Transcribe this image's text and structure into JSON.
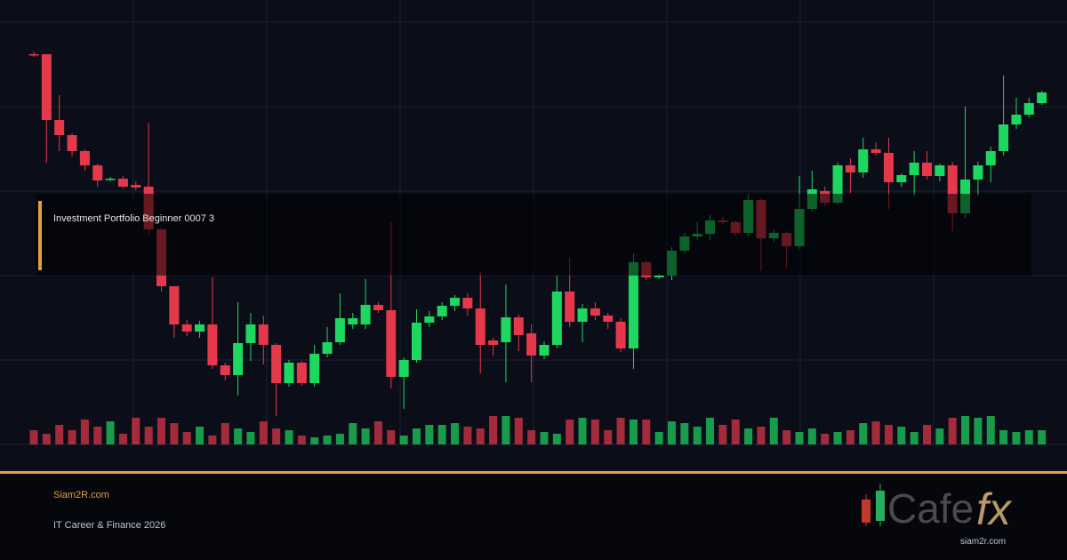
{
  "chart_data": {
    "type": "candlestick",
    "up_color": "#1ed760",
    "down_color": "#e5384a",
    "ylim": [
      0,
      475
    ],
    "open": [
      439,
      439,
      365,
      348,
      330,
      314,
      298,
      299,
      292,
      290,
      242,
      178,
      135,
      127,
      135,
      89,
      78,
      114,
      135,
      112,
      69,
      92,
      69,
      102,
      115,
      135,
      135,
      157,
      151,
      76,
      95,
      137,
      144,
      156,
      165,
      153,
      117,
      115,
      143,
      125,
      100,
      112,
      172,
      138,
      153,
      145,
      138,
      108,
      205,
      188,
      190,
      218,
      234,
      237,
      252,
      250,
      238,
      275,
      232,
      238,
      223,
      265,
      285,
      272,
      314,
      306,
      332,
      328,
      295,
      303,
      317,
      302,
      314,
      260,
      298,
      314,
      330,
      360,
      371,
      384
    ],
    "high": [
      442,
      439,
      393,
      350,
      332,
      316,
      301,
      302,
      296,
      362,
      244,
      178,
      140,
      139,
      188,
      92,
      160,
      148,
      145,
      114,
      95,
      94,
      112,
      132,
      170,
      148,
      186,
      160,
      250,
      98,
      152,
      150,
      160,
      168,
      170,
      194,
      120,
      180,
      146,
      135,
      116,
      190,
      210,
      158,
      160,
      148,
      142,
      215,
      207,
      192,
      222,
      238,
      250,
      258,
      256,
      252,
      282,
      277,
      242,
      240,
      302,
      308,
      290,
      317,
      322,
      345,
      340,
      345,
      305,
      330,
      330,
      316,
      318,
      380,
      318,
      335,
      415,
      390,
      390,
      398
    ],
    "low": [
      436,
      317,
      330,
      324,
      308,
      290,
      296,
      288,
      286,
      236,
      172,
      120,
      122,
      120,
      85,
      72,
      55,
      94,
      90,
      32,
      65,
      66,
      65,
      98,
      112,
      130,
      130,
      148,
      63,
      40,
      92,
      132,
      140,
      150,
      145,
      80,
      100,
      70,
      105,
      70,
      96,
      108,
      132,
      115,
      140,
      130,
      104,
      85,
      185,
      186,
      185,
      215,
      230,
      230,
      248,
      235,
      234,
      195,
      228,
      198,
      220,
      262,
      268,
      270,
      283,
      300,
      325,
      265,
      290,
      280,
      298,
      296,
      240,
      255,
      280,
      295,
      325,
      355,
      368,
      382
    ],
    "close": [
      438,
      365,
      348,
      330,
      314,
      297,
      299,
      290,
      289,
      242,
      178,
      135,
      127,
      135,
      89,
      78,
      114,
      135,
      112,
      69,
      92,
      69,
      102,
      115,
      142,
      142,
      157,
      151,
      76,
      95,
      137,
      144,
      156,
      165,
      153,
      112,
      112,
      143,
      123,
      100,
      112,
      172,
      138,
      153,
      145,
      138,
      108,
      205,
      188,
      190,
      218,
      234,
      237,
      252,
      250,
      238,
      275,
      232,
      238,
      223,
      265,
      287,
      272,
      314,
      306,
      332,
      328,
      295,
      303,
      317,
      302,
      314,
      260,
      298,
      314,
      330,
      360,
      371,
      384,
      396
    ],
    "volume": [
      16,
      12,
      22,
      16,
      28,
      20,
      26,
      12,
      30,
      20,
      30,
      24,
      14,
      20,
      10,
      24,
      18,
      14,
      26,
      18,
      16,
      10,
      8,
      10,
      12,
      24,
      18,
      26,
      16,
      10,
      18,
      22,
      22,
      24,
      20,
      18,
      32,
      32,
      30,
      16,
      14,
      12,
      28,
      30,
      28,
      16,
      30,
      28,
      28,
      14,
      26,
      24,
      20,
      30,
      22,
      28,
      18,
      20,
      30,
      16,
      14,
      18,
      12,
      14,
      16,
      24,
      26,
      22,
      20,
      14,
      22,
      18,
      30,
      32,
      30,
      32,
      16,
      14,
      16,
      16
    ]
  },
  "overlay": {
    "title": "Investment Portfolio Beginner 0007 3"
  },
  "footer": {
    "site": "Siam2R.com",
    "tagline": "IT Career & Finance 2026"
  },
  "logo": {
    "word": "Cafe",
    "accent": "fx",
    "url": "siam2r.com"
  }
}
